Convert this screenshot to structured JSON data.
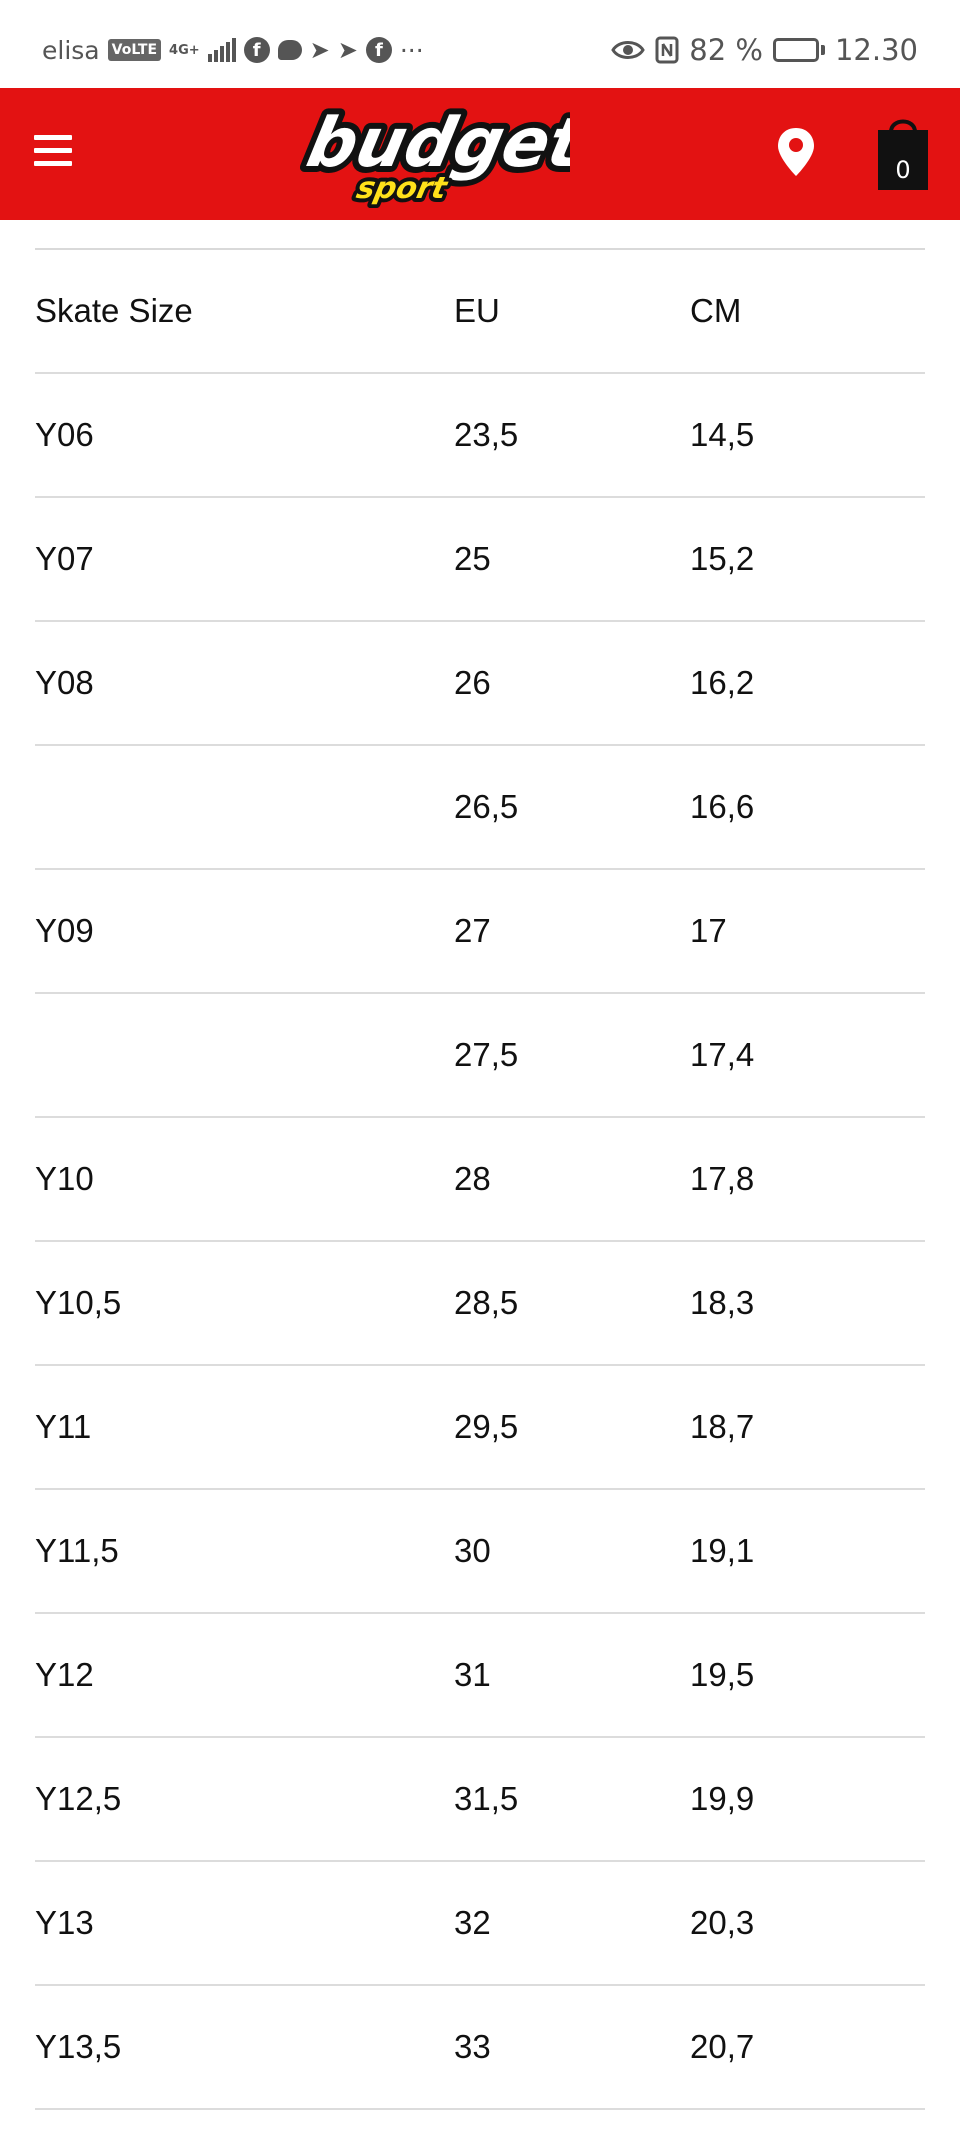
{
  "status_bar": {
    "carrier": "elisa",
    "volte_badge": "VoLTE",
    "network_type": "4G+",
    "more_indicator": "···",
    "battery_percent": "82 %",
    "battery_level": 0.82,
    "time": "12.30",
    "icons": [
      "facebook-icon",
      "messenger-icon",
      "send-icon",
      "send-icon",
      "facebook-icon",
      "eye-icon",
      "nfc-icon",
      "battery-icon"
    ]
  },
  "header": {
    "brand_color": "#e31212",
    "logo_text_main": "budget",
    "logo_text_sub": "sport",
    "cart_count": "0",
    "icons": [
      "menu-icon",
      "location-pin-icon",
      "shopping-bag-icon"
    ]
  },
  "size_table": {
    "headers": [
      "Skate Size",
      "EU",
      "CM"
    ],
    "rows": [
      [
        "Y06",
        "23,5",
        "14,5"
      ],
      [
        "Y07",
        "25",
        "15,2"
      ],
      [
        "Y08",
        "26",
        "16,2"
      ],
      [
        "",
        "26,5",
        "16,6"
      ],
      [
        "Y09",
        "27",
        "17"
      ],
      [
        "",
        "27,5",
        "17,4"
      ],
      [
        "Y10",
        "28",
        "17,8"
      ],
      [
        "Y10,5",
        "28,5",
        "18,3"
      ],
      [
        "Y11",
        "29,5",
        "18,7"
      ],
      [
        "Y11,5",
        "30",
        "19,1"
      ],
      [
        "Y12",
        "31",
        "19,5"
      ],
      [
        "Y12,5",
        "31,5",
        "19,9"
      ],
      [
        "Y13",
        "32",
        "20,3"
      ],
      [
        "Y13,5",
        "33",
        "20,7"
      ]
    ]
  }
}
